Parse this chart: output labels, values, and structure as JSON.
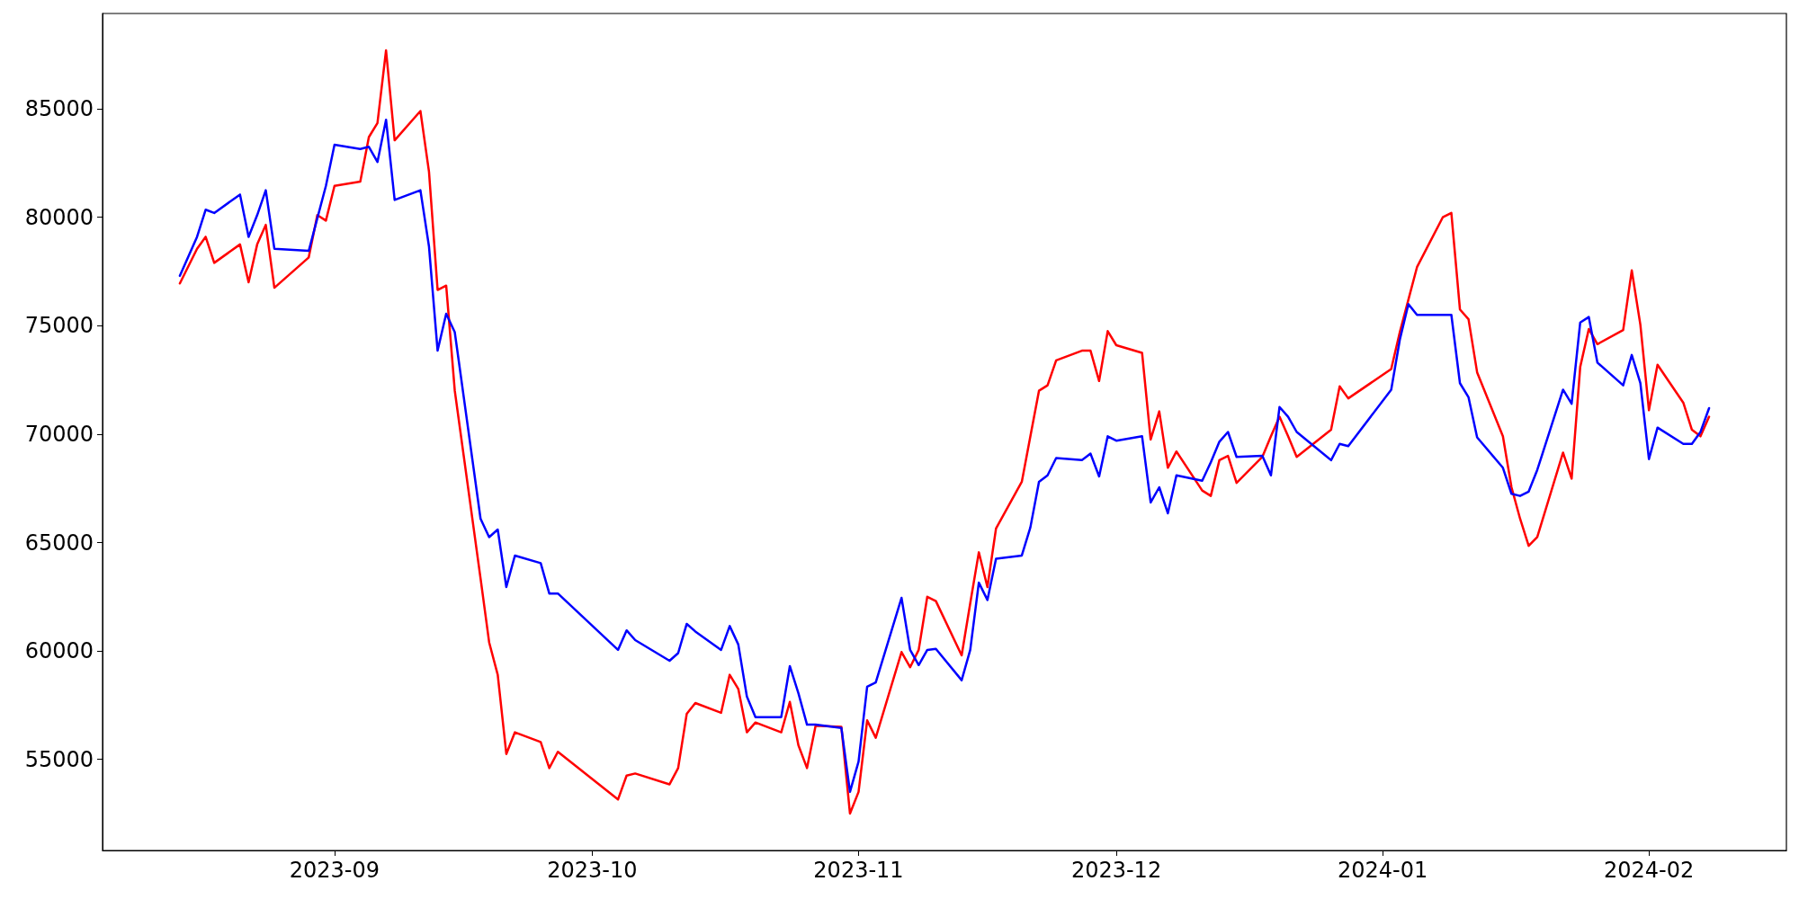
{
  "chart_data": {
    "type": "line",
    "x": [
      "2023-08-14",
      "2023-08-16",
      "2023-08-17",
      "2023-08-18",
      "2023-08-21",
      "2023-08-22",
      "2023-08-23",
      "2023-08-24",
      "2023-08-25",
      "2023-08-29",
      "2023-08-30",
      "2023-08-31",
      "2023-09-01",
      "2023-09-04",
      "2023-09-05",
      "2023-09-06",
      "2023-09-07",
      "2023-09-08",
      "2023-09-11",
      "2023-09-12",
      "2023-09-13",
      "2023-09-14",
      "2023-09-15",
      "2023-09-18",
      "2023-09-19",
      "2023-09-20",
      "2023-09-21",
      "2023-09-22",
      "2023-09-25",
      "2023-09-26",
      "2023-09-27",
      "2023-10-04",
      "2023-10-05",
      "2023-10-06",
      "2023-10-10",
      "2023-10-11",
      "2023-10-12",
      "2023-10-13",
      "2023-10-16",
      "2023-10-17",
      "2023-10-18",
      "2023-10-19",
      "2023-10-20",
      "2023-10-23",
      "2023-10-24",
      "2023-10-25",
      "2023-10-26",
      "2023-10-27",
      "2023-10-30",
      "2023-10-31",
      "2023-11-01",
      "2023-11-02",
      "2023-11-03",
      "2023-11-06",
      "2023-11-07",
      "2023-11-08",
      "2023-11-09",
      "2023-11-10",
      "2023-11-13",
      "2023-11-14",
      "2023-11-15",
      "2023-11-16",
      "2023-11-17",
      "2023-11-20",
      "2023-11-21",
      "2023-11-22",
      "2023-11-23",
      "2023-11-24",
      "2023-11-27",
      "2023-11-28",
      "2023-11-29",
      "2023-11-30",
      "2023-12-01",
      "2023-12-04",
      "2023-12-05",
      "2023-12-06",
      "2023-12-07",
      "2023-12-08",
      "2023-12-11",
      "2023-12-12",
      "2023-12-13",
      "2023-12-14",
      "2023-12-15",
      "2023-12-18",
      "2023-12-19",
      "2023-12-20",
      "2023-12-21",
      "2023-12-22",
      "2023-12-26",
      "2023-12-27",
      "2023-12-28",
      "2024-01-02",
      "2024-01-03",
      "2024-01-04",
      "2024-01-05",
      "2024-01-08",
      "2024-01-09",
      "2024-01-10",
      "2024-01-11",
      "2024-01-12",
      "2024-01-15",
      "2024-01-16",
      "2024-01-17",
      "2024-01-18",
      "2024-01-19",
      "2024-01-22",
      "2024-01-23",
      "2024-01-24",
      "2024-01-25",
      "2024-01-26",
      "2024-01-29",
      "2024-01-30",
      "2024-01-31",
      "2024-02-01",
      "2024-02-02",
      "2024-02-05",
      "2024-02-06",
      "2024-02-07",
      "2024-02-08"
    ],
    "series": [
      {
        "color": "#ff0000",
        "values": [
          76950,
          78550,
          79100,
          77900,
          78750,
          77000,
          78750,
          79650,
          76750,
          78150,
          80100,
          79850,
          81450,
          81650,
          83700,
          84350,
          87700,
          83550,
          84900,
          82100,
          76650,
          76850,
          72000,
          63350,
          60400,
          58900,
          55250,
          56250,
          55800,
          54600,
          55350,
          53150,
          54250,
          54350,
          53850,
          54600,
          57100,
          57600,
          57150,
          58900,
          58250,
          56250,
          56700,
          56250,
          57650,
          55650,
          54600,
          56550,
          56500,
          52500,
          53500,
          56800,
          56000,
          59950,
          59250,
          60050,
          62500,
          62300,
          59800,
          62200,
          64550,
          62950,
          65650,
          67800,
          69900,
          72000,
          72250,
          73400,
          73850,
          73850,
          72450,
          74750,
          74100,
          73750,
          69750,
          71050,
          68450,
          69200,
          67400,
          67150,
          68800,
          69000,
          67750,
          68950,
          69900,
          70800,
          69900,
          68950,
          70200,
          72200,
          71650,
          73000,
          74700,
          76200,
          77700,
          80000,
          80200,
          75750,
          75300,
          72850,
          69900,
          67550,
          66100,
          64850,
          65250,
          69150,
          67950,
          73100,
          74850,
          74150,
          74800,
          77550,
          75050,
          71100,
          73200,
          71450,
          70200,
          69900,
          70800
        ]
      },
      {
        "color": "#0000ff",
        "values": [
          77300,
          79100,
          80350,
          80200,
          81050,
          79100,
          80100,
          81250,
          78550,
          78450,
          79950,
          81450,
          83350,
          83150,
          83250,
          82550,
          84500,
          80800,
          81250,
          78650,
          73850,
          75550,
          74700,
          66100,
          65250,
          65600,
          62950,
          64400,
          64050,
          62650,
          62650,
          60050,
          60950,
          60500,
          59550,
          59900,
          61250,
          60900,
          60050,
          61150,
          60300,
          57900,
          56950,
          56950,
          59300,
          58050,
          56600,
          56600,
          56450,
          53500,
          54900,
          58350,
          58550,
          62450,
          60050,
          59350,
          60050,
          60100,
          58650,
          60050,
          63150,
          62350,
          64250,
          64400,
          65700,
          67800,
          68100,
          68900,
          68800,
          69100,
          68050,
          69900,
          69700,
          69900,
          66850,
          67550,
          66350,
          68100,
          67850,
          68700,
          69650,
          70100,
          68950,
          69000,
          68100,
          71250,
          70800,
          70100,
          68800,
          69550,
          69450,
          72050,
          74350,
          76000,
          75500,
          75500,
          75500,
          72350,
          71700,
          69850,
          68450,
          67250,
          67150,
          67350,
          68350,
          72050,
          71400,
          75150,
          75400,
          73300,
          72250,
          73650,
          72350,
          68850,
          70300,
          69550,
          69550,
          70100,
          71200
        ]
      }
    ],
    "xlim": [
      "2023-08-05",
      "2024-02-17"
    ],
    "xticks": [
      {
        "value": "2023-09-01",
        "label": "2023-09"
      },
      {
        "value": "2023-10-01",
        "label": "2023-10"
      },
      {
        "value": "2023-11-01",
        "label": "2023-11"
      },
      {
        "value": "2023-12-01",
        "label": "2023-12"
      },
      {
        "value": "2024-01-01",
        "label": "2024-01"
      },
      {
        "value": "2024-02-01",
        "label": "2024-02"
      }
    ],
    "ylim": [
      50800,
      89400
    ],
    "yticks": [
      55000,
      60000,
      65000,
      70000,
      75000,
      80000,
      85000
    ],
    "marker": "none",
    "line_style": "solid"
  }
}
